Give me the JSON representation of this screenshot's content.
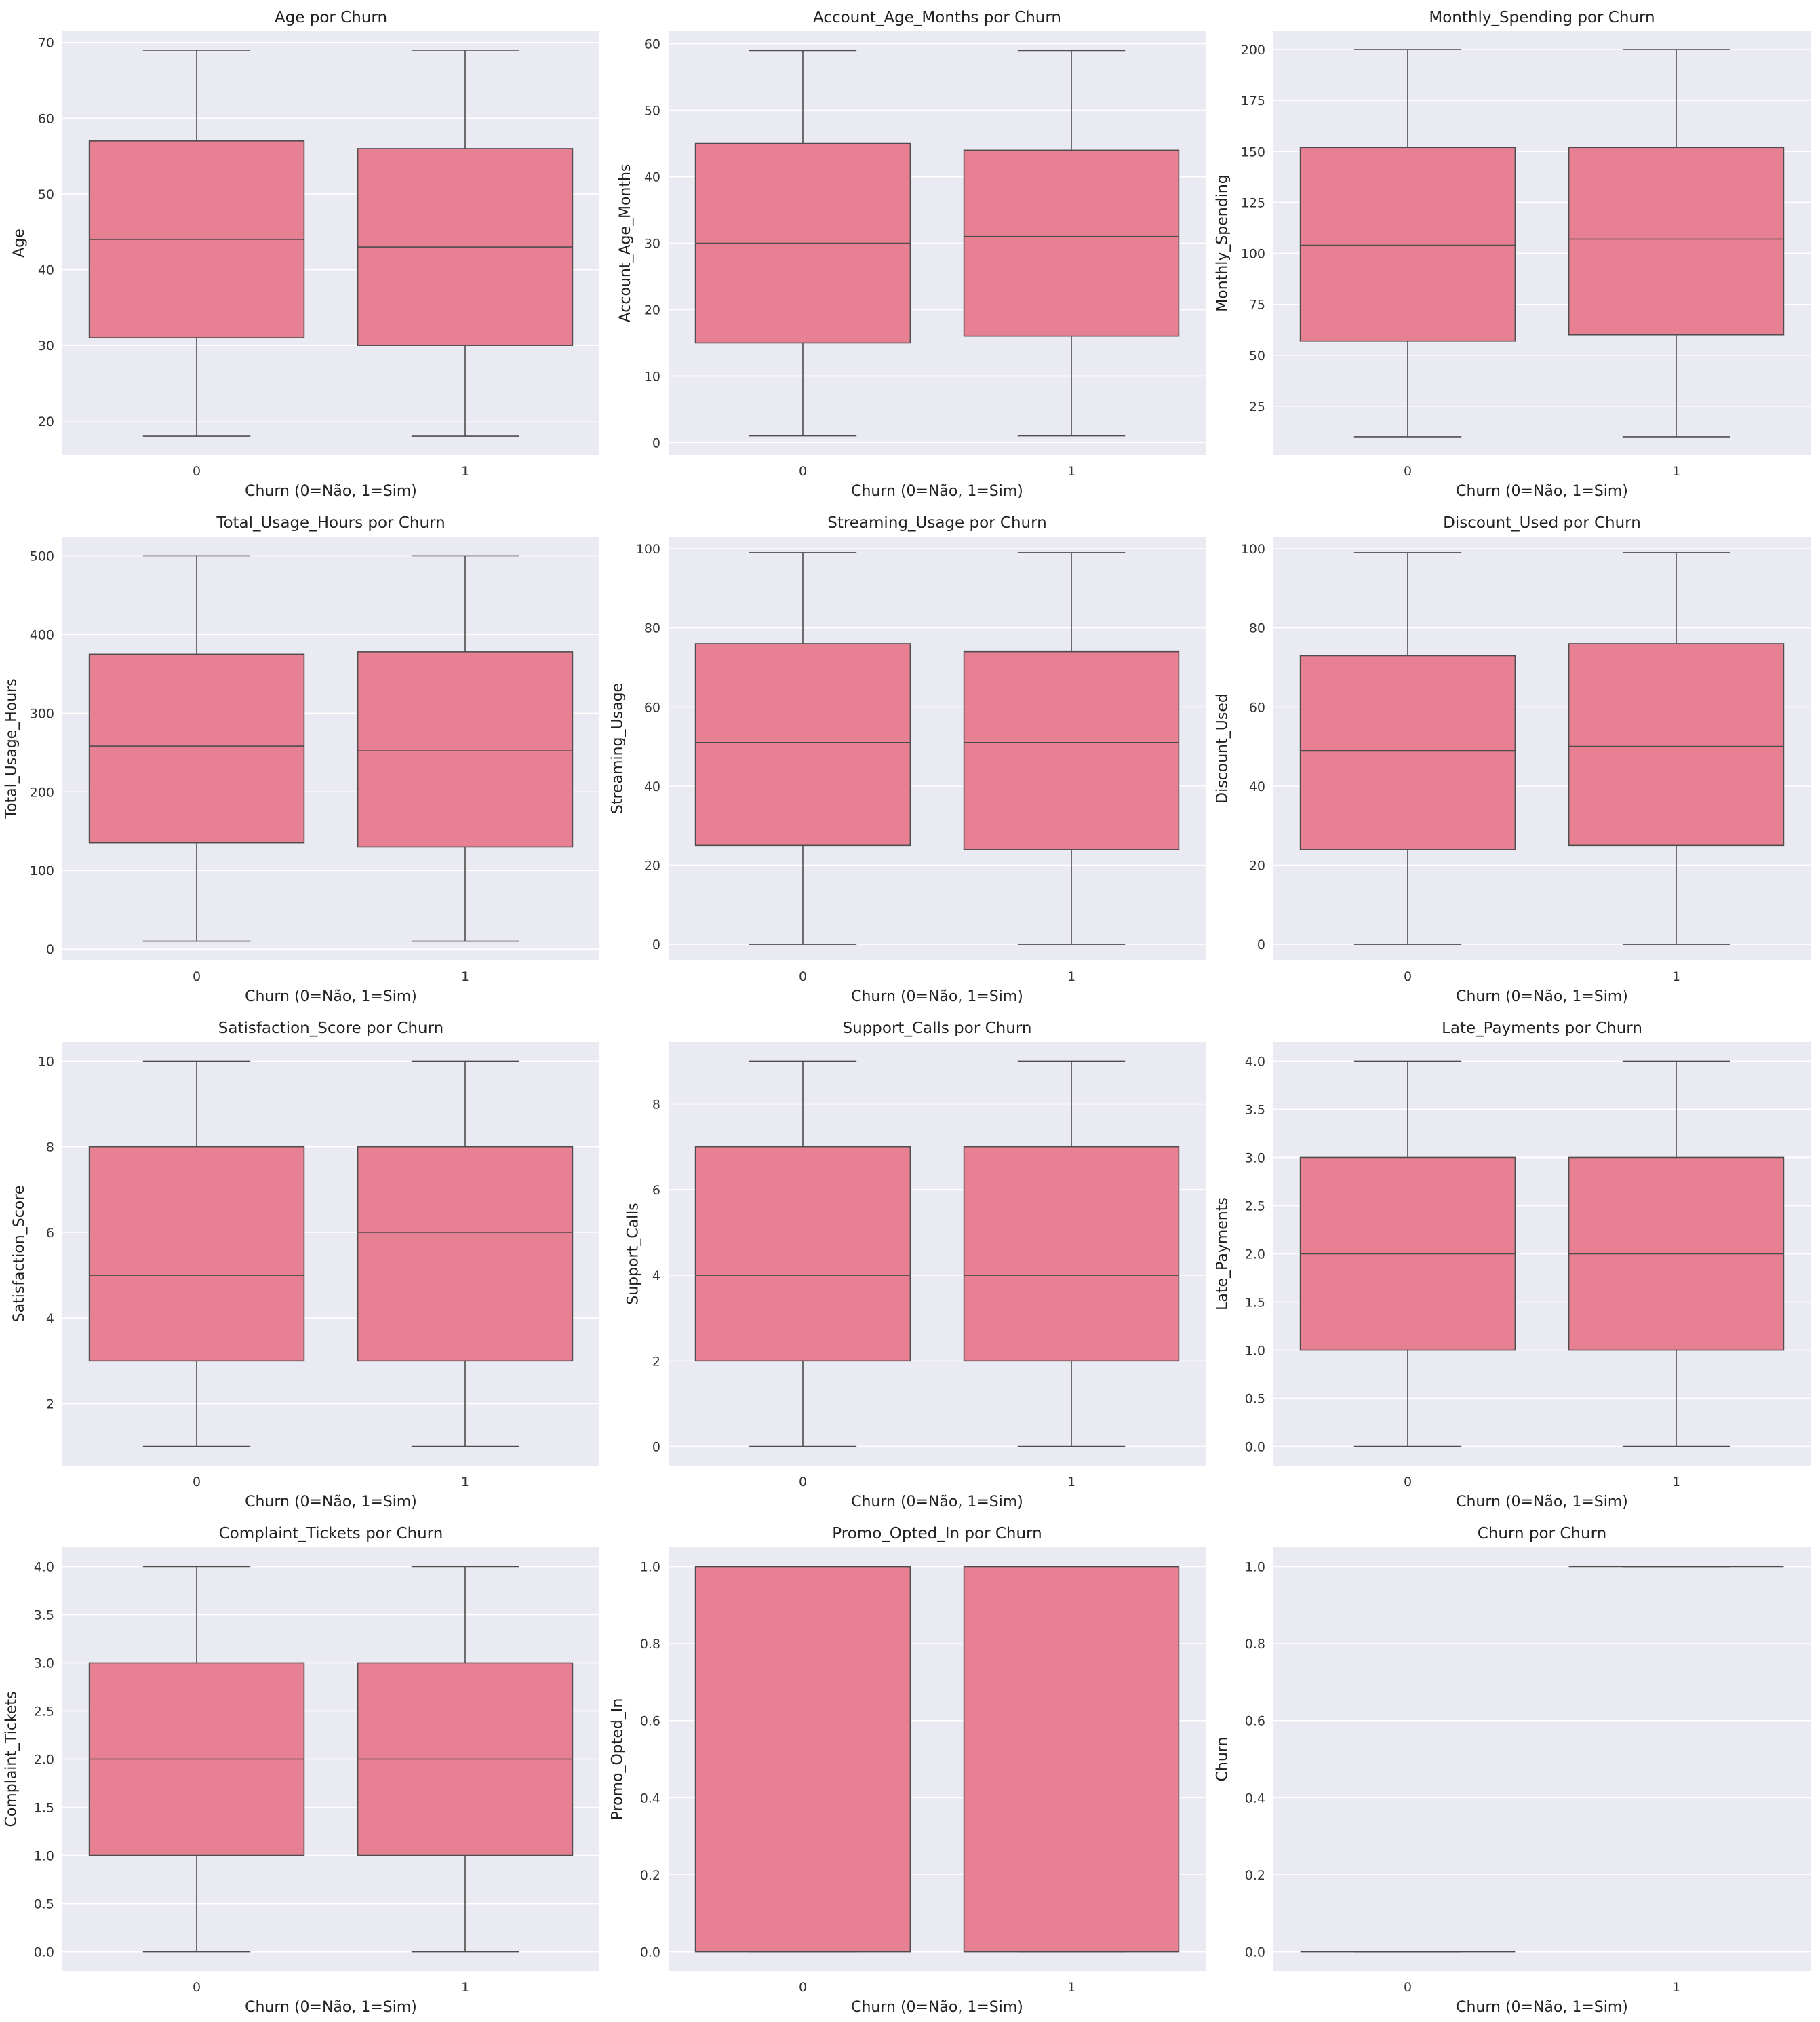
{
  "figure": {
    "background": "#ffffff",
    "axes_face_color": "#eaeaf2",
    "grid_color": "#ffffff",
    "box_color": "#e88093",
    "line_color": "#4d4d4d"
  },
  "chart_data": [
    {
      "type": "box",
      "title": "Age por Churn",
      "xlabel": "Churn (0=Não, 1=Sim)",
      "ylabel": "Age",
      "categories": [
        "0",
        "1"
      ],
      "ylim": [
        15.5,
        71.5
      ],
      "yticks": [
        20,
        30,
        40,
        50,
        60,
        70
      ],
      "boxes": [
        {
          "whislo": 18,
          "q1": 31,
          "med": 44,
          "q3": 57,
          "whishi": 69
        },
        {
          "whislo": 18,
          "q1": 30,
          "med": 43,
          "q3": 56,
          "whishi": 69
        }
      ],
      "grid": true
    },
    {
      "type": "box",
      "title": "Account_Age_Months por Churn",
      "xlabel": "Churn (0=Não, 1=Sim)",
      "ylabel": "Account_Age_Months",
      "categories": [
        "0",
        "1"
      ],
      "ylim": [
        -1.9,
        61.9
      ],
      "yticks": [
        0,
        10,
        20,
        30,
        40,
        50,
        60
      ],
      "boxes": [
        {
          "whislo": 1,
          "q1": 15,
          "med": 30,
          "q3": 45,
          "whishi": 59
        },
        {
          "whislo": 1,
          "q1": 16,
          "med": 31,
          "q3": 44,
          "whishi": 59
        }
      ],
      "grid": true
    },
    {
      "type": "box",
      "title": "Monthly_Spending por Churn",
      "xlabel": "Churn (0=Não, 1=Sim)",
      "ylabel": "Monthly_Spending",
      "categories": [
        "0",
        "1"
      ],
      "ylim": [
        1,
        209
      ],
      "yticks": [
        25,
        50,
        75,
        100,
        125,
        150,
        175,
        200
      ],
      "boxes": [
        {
          "whislo": 10,
          "q1": 57,
          "med": 104,
          "q3": 152,
          "whishi": 200
        },
        {
          "whislo": 10,
          "q1": 60,
          "med": 107,
          "q3": 152,
          "whishi": 200
        }
      ],
      "grid": true
    },
    {
      "type": "box",
      "title": "Total_Usage_Hours por Churn",
      "xlabel": "Churn (0=Não, 1=Sim)",
      "ylabel": "Total_Usage_Hours",
      "categories": [
        "0",
        "1"
      ],
      "ylim": [
        -14.5,
        524.5
      ],
      "yticks": [
        0,
        100,
        200,
        300,
        400,
        500
      ],
      "boxes": [
        {
          "whislo": 10,
          "q1": 135,
          "med": 258,
          "q3": 375,
          "whishi": 500
        },
        {
          "whislo": 10,
          "q1": 130,
          "med": 253,
          "q3": 378,
          "whishi": 500
        }
      ],
      "grid": true
    },
    {
      "type": "box",
      "title": "Streaming_Usage por Churn",
      "xlabel": "Churn (0=Não, 1=Sim)",
      "ylabel": "Streaming_Usage",
      "categories": [
        "0",
        "1"
      ],
      "ylim": [
        -4.1,
        103.1
      ],
      "yticks": [
        0,
        20,
        40,
        60,
        80,
        100
      ],
      "boxes": [
        {
          "whislo": 0,
          "q1": 25,
          "med": 51,
          "q3": 76,
          "whishi": 99
        },
        {
          "whislo": 0,
          "q1": 24,
          "med": 51,
          "q3": 74,
          "whishi": 99
        }
      ],
      "grid": true
    },
    {
      "type": "box",
      "title": "Discount_Used por Churn",
      "xlabel": "Churn (0=Não, 1=Sim)",
      "ylabel": "Discount_Used",
      "categories": [
        "0",
        "1"
      ],
      "ylim": [
        -4.1,
        103.1
      ],
      "yticks": [
        0,
        20,
        40,
        60,
        80,
        100
      ],
      "boxes": [
        {
          "whislo": 0,
          "q1": 24,
          "med": 49,
          "q3": 73,
          "whishi": 99
        },
        {
          "whislo": 0,
          "q1": 25,
          "med": 50,
          "q3": 76,
          "whishi": 99
        }
      ],
      "grid": true
    },
    {
      "type": "box",
      "title": "Satisfaction_Score por Churn",
      "xlabel": "Churn (0=Não, 1=Sim)",
      "ylabel": "Satisfaction_Score",
      "categories": [
        "0",
        "1"
      ],
      "ylim": [
        0.55,
        10.45
      ],
      "yticks": [
        2,
        4,
        6,
        8,
        10
      ],
      "boxes": [
        {
          "whislo": 1,
          "q1": 3,
          "med": 5,
          "q3": 8,
          "whishi": 10
        },
        {
          "whislo": 1,
          "q1": 3,
          "med": 6,
          "q3": 8,
          "whishi": 10
        }
      ],
      "grid": true
    },
    {
      "type": "box",
      "title": "Support_Calls por Churn",
      "xlabel": "Churn (0=Não, 1=Sim)",
      "ylabel": "Support_Calls",
      "categories": [
        "0",
        "1"
      ],
      "ylim": [
        -0.45,
        9.45
      ],
      "yticks": [
        0,
        2,
        4,
        6,
        8
      ],
      "boxes": [
        {
          "whislo": 0,
          "q1": 2,
          "med": 4,
          "q3": 7,
          "whishi": 9
        },
        {
          "whislo": 0,
          "q1": 2,
          "med": 4,
          "q3": 7,
          "whishi": 9
        }
      ],
      "grid": true
    },
    {
      "type": "box",
      "title": "Late_Payments por Churn",
      "xlabel": "Churn (0=Não, 1=Sim)",
      "ylabel": "Late_Payments",
      "categories": [
        "0",
        "1"
      ],
      "ylim": [
        -0.2,
        4.2
      ],
      "yticks": [
        0.0,
        0.5,
        1.0,
        1.5,
        2.0,
        2.5,
        3.0,
        3.5,
        4.0
      ],
      "boxes": [
        {
          "whislo": 0,
          "q1": 1,
          "med": 2,
          "q3": 3,
          "whishi": 4
        },
        {
          "whislo": 0,
          "q1": 1,
          "med": 2,
          "q3": 3,
          "whishi": 4
        }
      ],
      "grid": true
    },
    {
      "type": "box",
      "title": "Complaint_Tickets por Churn",
      "xlabel": "Churn (0=Não, 1=Sim)",
      "ylabel": "Complaint_Tickets",
      "categories": [
        "0",
        "1"
      ],
      "ylim": [
        -0.2,
        4.2
      ],
      "yticks": [
        0.0,
        0.5,
        1.0,
        1.5,
        2.0,
        2.5,
        3.0,
        3.5,
        4.0
      ],
      "boxes": [
        {
          "whislo": 0,
          "q1": 1,
          "med": 2,
          "q3": 3,
          "whishi": 4
        },
        {
          "whislo": 0,
          "q1": 1,
          "med": 2,
          "q3": 3,
          "whishi": 4
        }
      ],
      "grid": true
    },
    {
      "type": "box",
      "title": "Promo_Opted_In por Churn",
      "xlabel": "Churn (0=Não, 1=Sim)",
      "ylabel": "Promo_Opted_In",
      "categories": [
        "0",
        "1"
      ],
      "ylim": [
        -0.05,
        1.05
      ],
      "yticks": [
        0.0,
        0.2,
        0.4,
        0.6,
        0.8,
        1.0
      ],
      "boxes": [
        {
          "whislo": 0,
          "q1": 0,
          "med": 1,
          "q3": 1,
          "whishi": 1
        },
        {
          "whislo": 0,
          "q1": 0,
          "med": 1,
          "q3": 1,
          "whishi": 1
        }
      ],
      "grid": true
    },
    {
      "type": "box",
      "title": "Churn por Churn",
      "xlabel": "Churn (0=Não, 1=Sim)",
      "ylabel": "Churn",
      "categories": [
        "0",
        "1"
      ],
      "ylim": [
        -0.05,
        1.05
      ],
      "yticks": [
        0.0,
        0.2,
        0.4,
        0.6,
        0.8,
        1.0
      ],
      "boxes": [
        {
          "whislo": 0,
          "q1": 0,
          "med": 0,
          "q3": 0,
          "whishi": 0
        },
        {
          "whislo": 1,
          "q1": 1,
          "med": 1,
          "q3": 1,
          "whishi": 1
        }
      ],
      "grid": true
    }
  ]
}
